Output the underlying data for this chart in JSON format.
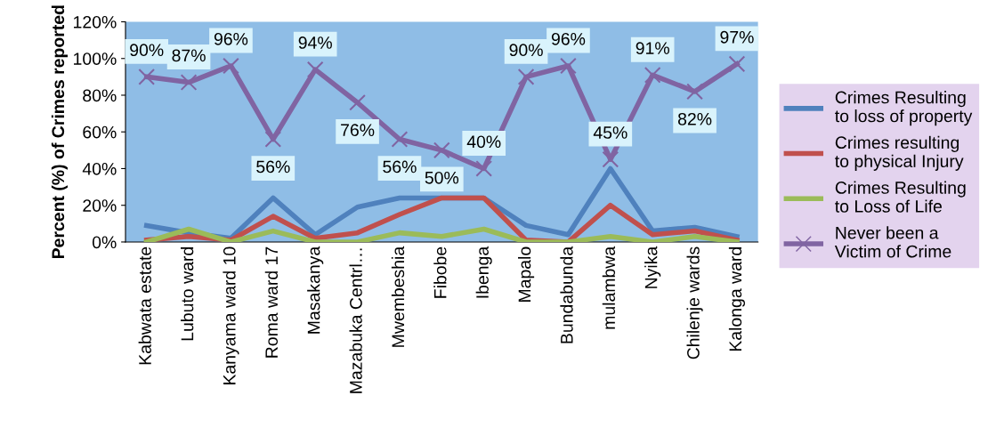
{
  "chart_data": {
    "type": "line",
    "ylabel": "Percent (%) of Crimes reported",
    "categories": [
      "Kabwata estate",
      "Lubuto ward",
      "Kanyama ward 10",
      "Roma ward 17",
      "Masakanya",
      "Mazabuka Centrl…",
      "Mwembeshia",
      "Fibobe",
      "Ibenga",
      "Mapalo",
      "Bundabunda",
      "mulambwa",
      "Nyika",
      "Chilenje wards",
      "Kalonga ward"
    ],
    "series": [
      {
        "name": "Crimes Resulting to loss of property",
        "color": "#4f81bd",
        "values": [
          9,
          5,
          2,
          24,
          4,
          19,
          24,
          24,
          24,
          9,
          4,
          40,
          6,
          8,
          3
        ]
      },
      {
        "name": "Crimes resulting to physical Injury",
        "color": "#c0504d",
        "values": [
          1,
          3,
          1,
          14,
          2,
          5,
          15,
          24,
          24,
          1,
          0,
          20,
          4,
          6,
          1
        ]
      },
      {
        "name": "Crimes Resulting to Loss of Life",
        "color": "#9bbb59",
        "values": [
          0,
          7,
          0,
          6,
          0,
          0,
          5,
          3,
          7,
          0,
          0,
          3,
          0,
          3,
          0
        ]
      },
      {
        "name": "Never been a Victim of Crime",
        "color": "#8064a2",
        "marker": "cross",
        "values": [
          90,
          87,
          96,
          56,
          94,
          76,
          56,
          50,
          40,
          90,
          96,
          45,
          91,
          82,
          97
        ],
        "value_labels": [
          "90%",
          "87%",
          "96%",
          "56%",
          "94%",
          "76%",
          "56%",
          "50%",
          "40%",
          "90%",
          "96%",
          "45%",
          "91%",
          "82%",
          "97%"
        ]
      }
    ],
    "ylim": [
      0,
      120
    ],
    "yticks": [
      {
        "value": 0,
        "label": "0%"
      },
      {
        "value": 20,
        "label": "20%"
      },
      {
        "value": 40,
        "label": "40%"
      },
      {
        "value": 60,
        "label": "60%"
      },
      {
        "value": 80,
        "label": "80%"
      },
      {
        "value": 100,
        "label": "100%"
      },
      {
        "value": 120,
        "label": "120%"
      }
    ],
    "grid": false,
    "legend": "right"
  }
}
